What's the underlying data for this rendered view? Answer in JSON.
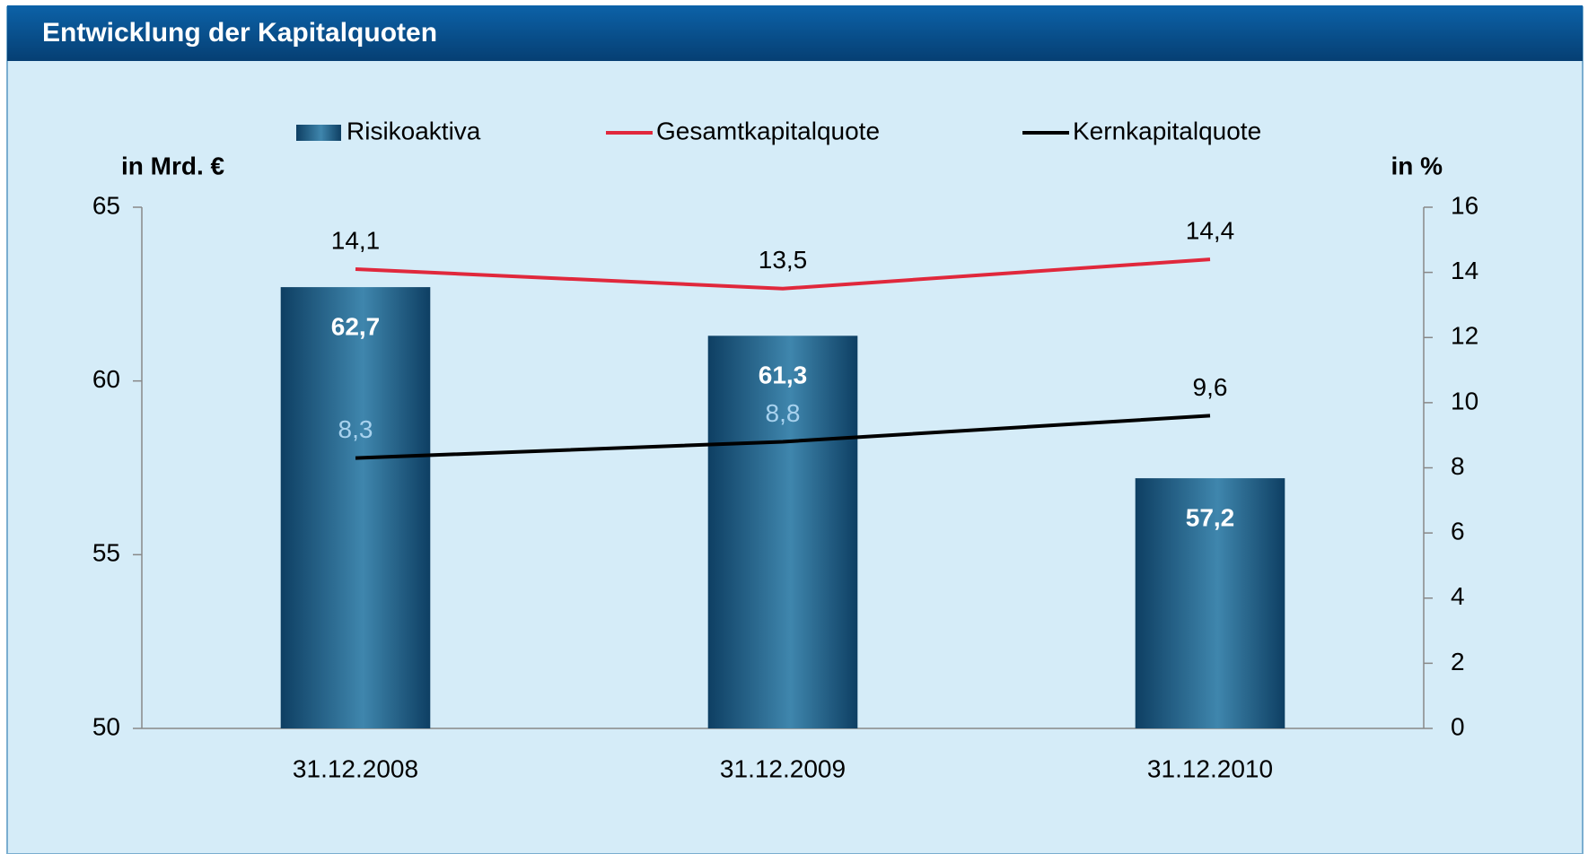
{
  "chart_data": {
    "type": "bar",
    "title": "Entwicklung der Kapitalquoten",
    "y_label": "in Mrd. €",
    "y2_label": "in %",
    "categories": [
      "31.12.2008",
      "31.12.2009",
      "31.12.2010"
    ],
    "series": [
      {
        "name": "Risikoaktiva",
        "type": "bar",
        "color": "#1b5a82",
        "values": [
          62.7,
          61.3,
          57.2
        ],
        "value_labels": [
          "62,7",
          "61,3",
          "57,2"
        ]
      },
      {
        "name": "Gesamtkapitalquote",
        "type": "line",
        "axis": "y2",
        "color": "#e0283c",
        "values": [
          14.1,
          13.5,
          14.4
        ],
        "value_labels": [
          "14,1",
          "13,5",
          "14,4"
        ]
      },
      {
        "name": "Kernkapitalquote",
        "type": "line",
        "axis": "y2",
        "color": "#000000",
        "values": [
          8.3,
          8.8,
          9.6
        ],
        "value_labels": [
          "8,3",
          "8,8",
          "9,6"
        ]
      }
    ],
    "ylim": [
      50,
      65
    ],
    "yticks": [
      50,
      55,
      60,
      65
    ],
    "y2lim": [
      0,
      16
    ],
    "y2ticks": [
      0,
      2,
      4,
      6,
      8,
      10,
      12,
      14,
      16
    ],
    "legend": "top"
  }
}
